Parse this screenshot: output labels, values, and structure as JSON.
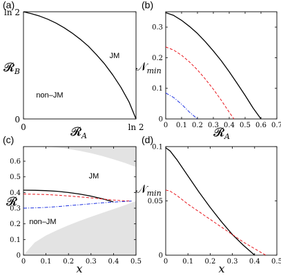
{
  "chart_data": [
    {
      "panel": "(a)",
      "type": "line",
      "xlabel": "𝓡A",
      "ylabel": "𝓡B",
      "x_ticks": [
        "0",
        "ln 2"
      ],
      "y_ticks": [
        "ln 2",
        "0"
      ],
      "xlim": [
        0,
        0.6931
      ],
      "ylim": [
        0,
        0.6931
      ],
      "annotations": [
        "JM",
        "non–JM"
      ],
      "series": [
        {
          "color": "#000000",
          "style": "solid",
          "x": [
            0,
            0.05,
            0.1,
            0.15,
            0.2,
            0.25,
            0.3,
            0.35,
            0.4,
            0.45,
            0.5,
            0.55,
            0.6,
            0.65,
            0.6931
          ],
          "y": [
            0.6931,
            0.68,
            0.665,
            0.645,
            0.62,
            0.59,
            0.555,
            0.515,
            0.47,
            0.415,
            0.355,
            0.285,
            0.205,
            0.11,
            0
          ]
        }
      ]
    },
    {
      "panel": "(b)",
      "type": "line",
      "xlabel": "𝓡A",
      "ylabel": "𝒩min",
      "x_ticks": [
        "0",
        "0.1",
        "0.2",
        "0.3",
        "0.4",
        "0.5",
        "0.6",
        "0.7"
      ],
      "y_ticks": [
        "0",
        "0.1",
        "0.2",
        "0.3"
      ],
      "xlim": [
        0,
        0.7
      ],
      "ylim": [
        0,
        0.35
      ],
      "series": [
        {
          "color": "#000000",
          "style": "solid",
          "x": [
            0,
            0.05,
            0.1,
            0.15,
            0.2,
            0.25,
            0.3,
            0.35,
            0.4,
            0.45,
            0.5,
            0.55,
            0.6
          ],
          "y": [
            0.347,
            0.338,
            0.322,
            0.302,
            0.279,
            0.252,
            0.222,
            0.19,
            0.154,
            0.116,
            0.077,
            0.036,
            0
          ]
        },
        {
          "color": "#e8141b",
          "style": "dashed",
          "x": [
            0,
            0.05,
            0.1,
            0.15,
            0.2,
            0.25,
            0.3,
            0.35,
            0.4,
            0.43
          ],
          "y": [
            0.235,
            0.225,
            0.208,
            0.186,
            0.16,
            0.13,
            0.097,
            0.061,
            0.022,
            0
          ]
        },
        {
          "color": "#1a2ee0",
          "style": "dashdot",
          "x": [
            0,
            0.05,
            0.1,
            0.15,
            0.2
          ],
          "y": [
            0.085,
            0.07,
            0.048,
            0.022,
            0
          ]
        }
      ]
    },
    {
      "panel": "(c)",
      "type": "line",
      "xlabel": "x",
      "ylabel": "𝓡",
      "x_ticks": [
        "0",
        "0.1",
        "0.2",
        "0.3",
        "0.4",
        "0.5"
      ],
      "y_ticks": [
        "0",
        "0.1",
        "0.2",
        "0.3",
        "0.4",
        "0.5",
        "0.6"
      ],
      "xlim": [
        0,
        0.5
      ],
      "ylim": [
        0,
        0.693
      ],
      "annotations": [
        "JM",
        "non–JM"
      ],
      "shaded_color": "#e3e3e3",
      "region_upper": {
        "x": [
          0.1,
          0.15,
          0.2,
          0.25,
          0.3,
          0.35,
          0.4,
          0.45,
          0.5
        ],
        "y": [
          0.693,
          0.688,
          0.678,
          0.666,
          0.651,
          0.633,
          0.612,
          0.589,
          0.563
        ]
      },
      "region_lower": {
        "x": [
          0,
          0.05,
          0.1,
          0.15,
          0.2,
          0.25,
          0.3,
          0.35,
          0.4,
          0.45,
          0.5
        ],
        "y": [
          0,
          0.081,
          0.126,
          0.16,
          0.191,
          0.219,
          0.245,
          0.27,
          0.294,
          0.319,
          0.345
        ]
      },
      "series": [
        {
          "color": "#000000",
          "style": "solid",
          "x": [
            0,
            0.05,
            0.1,
            0.15,
            0.2,
            0.25,
            0.3,
            0.35,
            0.4
          ],
          "y": [
            0.415,
            0.414,
            0.412,
            0.408,
            0.4,
            0.39,
            0.377,
            0.36,
            0.34
          ]
        },
        {
          "color": "#e8141b",
          "style": "dashed",
          "x": [
            0,
            0.05,
            0.1,
            0.15,
            0.2,
            0.25,
            0.3,
            0.35,
            0.4,
            0.45,
            0.48
          ],
          "y": [
            0.39,
            0.389,
            0.387,
            0.383,
            0.378,
            0.372,
            0.366,
            0.359,
            0.352,
            0.347,
            0.345
          ]
        },
        {
          "color": "#1a2ee0",
          "style": "dashdot",
          "x": [
            0,
            0.05,
            0.1,
            0.15,
            0.2,
            0.25,
            0.3,
            0.35,
            0.4,
            0.45,
            0.48
          ],
          "y": [
            0.3,
            0.302,
            0.305,
            0.31,
            0.316,
            0.322,
            0.328,
            0.334,
            0.339,
            0.343,
            0.345
          ]
        }
      ]
    },
    {
      "panel": "(d)",
      "type": "line",
      "xlabel": "x",
      "ylabel": "𝒩min",
      "x_ticks": [
        "0",
        "0.1",
        "0.2",
        "0.3",
        "0.4",
        "0.5"
      ],
      "y_ticks": [
        "0",
        "0.05",
        "0.1"
      ],
      "xlim": [
        0,
        0.5
      ],
      "ylim": [
        0,
        0.1
      ],
      "series": [
        {
          "color": "#000000",
          "style": "solid",
          "x": [
            0,
            0.02,
            0.05,
            0.1,
            0.15,
            0.2,
            0.25,
            0.3,
            0.35,
            0.4
          ],
          "y": [
            0.099,
            0.096,
            0.088,
            0.073,
            0.058,
            0.044,
            0.031,
            0.019,
            0.009,
            0
          ]
        },
        {
          "color": "#e8141b",
          "style": "dashed",
          "x": [
            0,
            0.02,
            0.05,
            0.1,
            0.15,
            0.2,
            0.25,
            0.3,
            0.35,
            0.4,
            0.45
          ],
          "y": [
            0.06,
            0.059,
            0.055,
            0.047,
            0.04,
            0.033,
            0.026,
            0.019,
            0.012,
            0.006,
            0
          ]
        }
      ]
    }
  ]
}
